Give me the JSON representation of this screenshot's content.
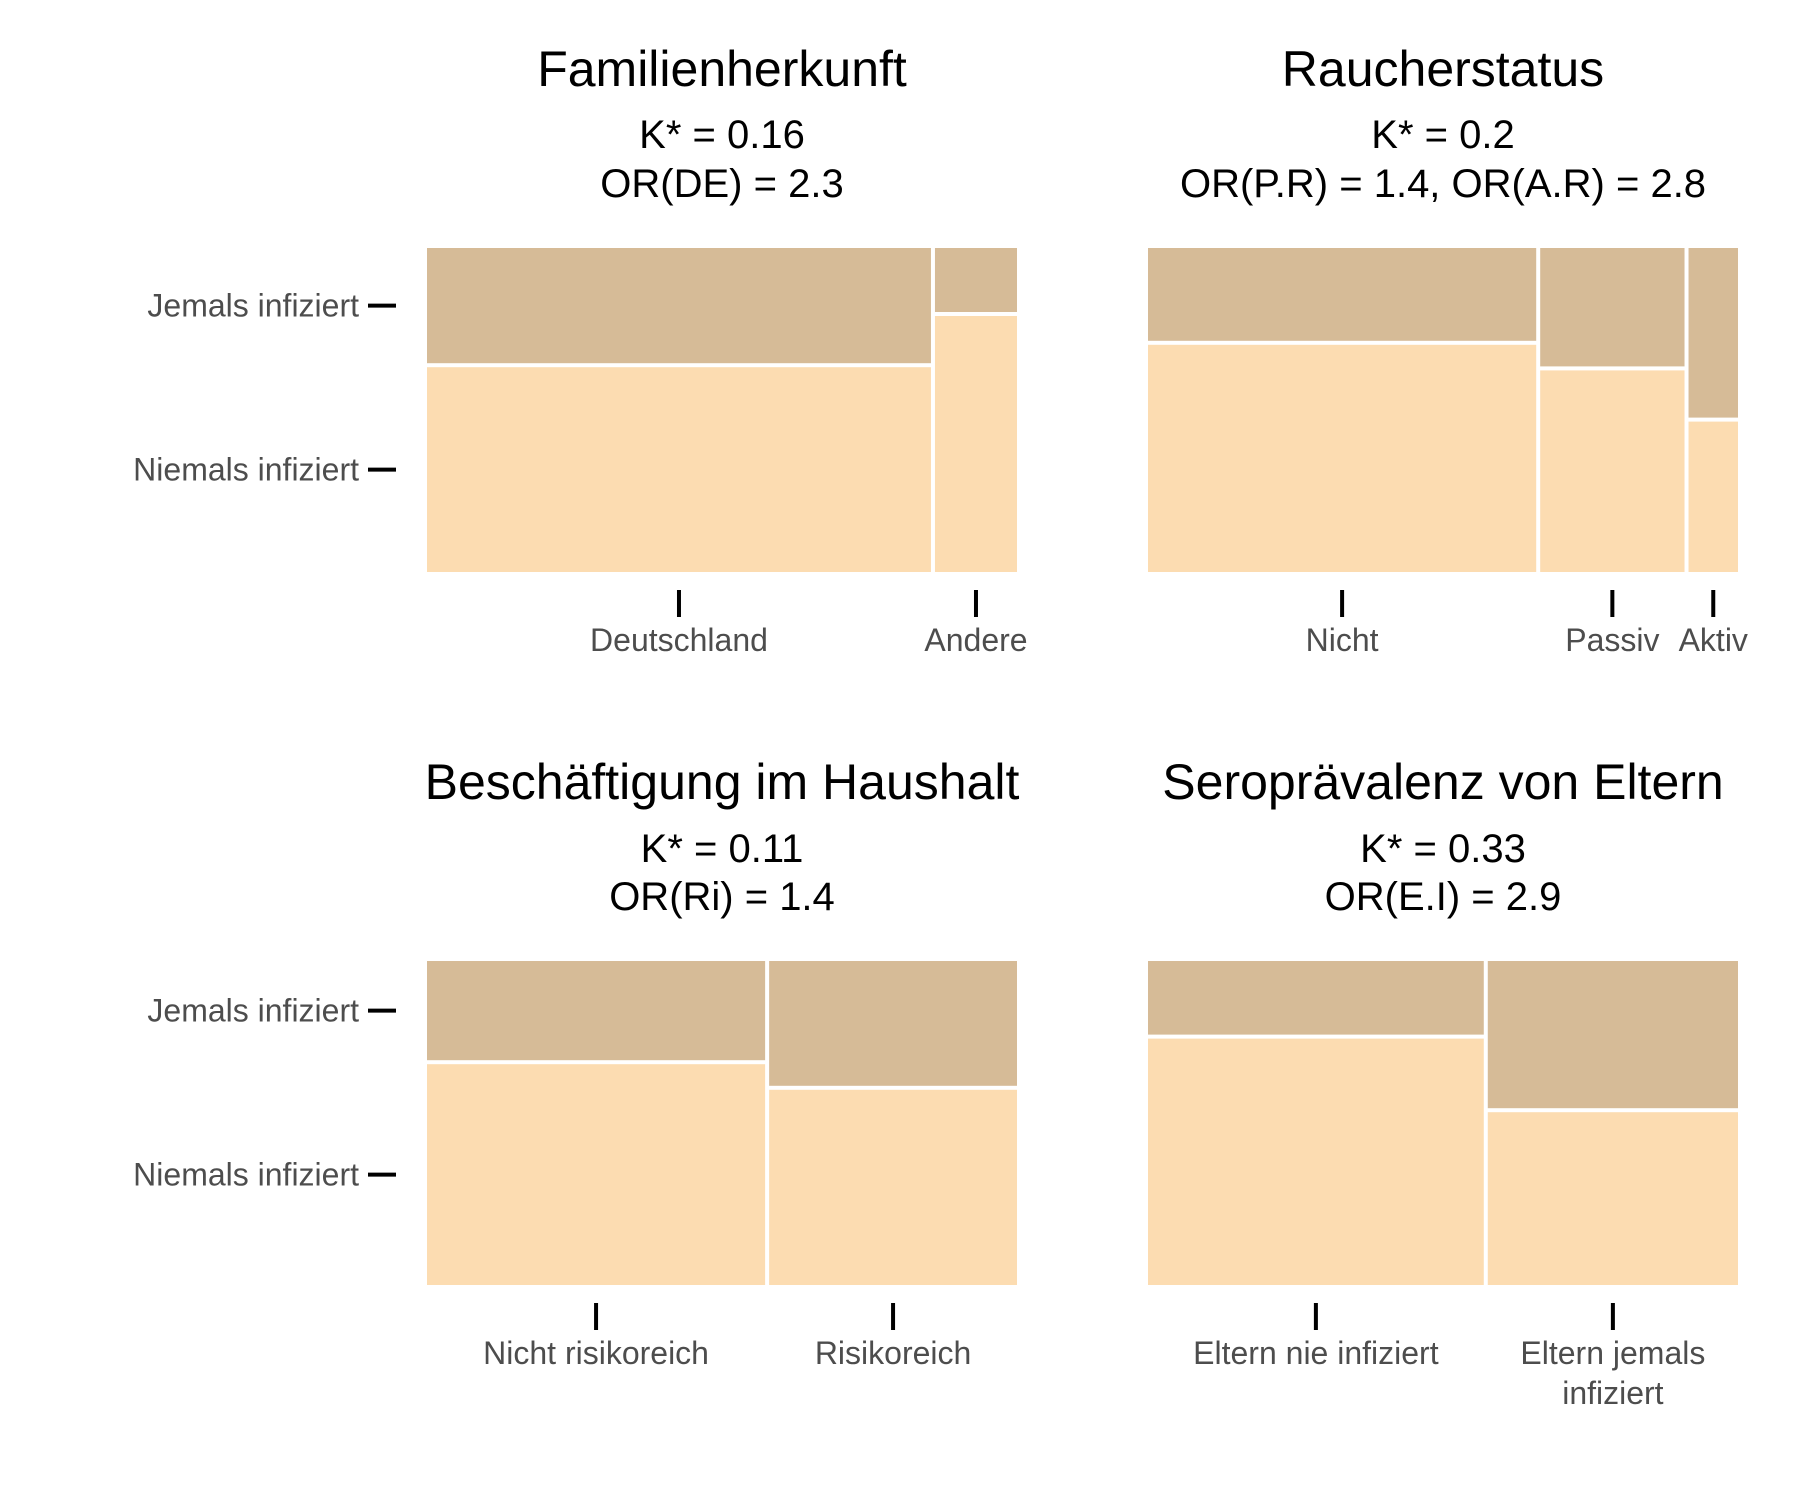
{
  "colors": {
    "ever_infected": "#d6bb97",
    "never_infected": "#fcdcb1",
    "divider": "#ffffff",
    "tick": "#000000",
    "label": "#4d4d4d"
  },
  "chart_data": [
    {
      "type": "mosaic",
      "title": "Familienherkunft",
      "subtitle_lines": [
        "K* = 0.16",
        "OR(DE) = 2.3"
      ],
      "y_categories": [
        "Jemals infiziert",
        "Niemals infiziert"
      ],
      "x_categories": [
        [
          "Deutschland"
        ],
        [
          "Andere"
        ]
      ],
      "column_widths": [
        0.86,
        0.14
      ],
      "ever_infected_share": [
        0.36,
        0.2
      ]
    },
    {
      "type": "mosaic",
      "title": "Raucherstatus",
      "subtitle_lines": [
        "K* = 0.2",
        "OR(P.R) = 1.4, OR(A.R) = 2.8"
      ],
      "y_categories": [
        "Jemals infiziert",
        "Niemals infiziert"
      ],
      "x_categories": [
        [
          "Nicht"
        ],
        [
          "Passiv"
        ],
        [
          "Aktiv"
        ]
      ],
      "column_widths": [
        0.667,
        0.248,
        0.085
      ],
      "ever_infected_share": [
        0.29,
        0.37,
        0.53
      ]
    },
    {
      "type": "mosaic",
      "title": "Beschäftigung im Haushalt",
      "subtitle_lines": [
        "K* = 0.11",
        "OR(Ri) = 1.4"
      ],
      "y_categories": [
        "Jemals infiziert",
        "Niemals infiziert"
      ],
      "x_categories": [
        [
          "Nicht risikoreich"
        ],
        [
          "Risikoreich"
        ]
      ],
      "column_widths": [
        0.577,
        0.423
      ],
      "ever_infected_share": [
        0.31,
        0.39
      ]
    },
    {
      "type": "mosaic",
      "title": "Seroprävalenz von Eltern",
      "subtitle_lines": [
        "K* = 0.33",
        "OR(E.I) = 2.9"
      ],
      "y_categories": [
        "Jemals infiziert",
        "Niemals infiziert"
      ],
      "x_categories": [
        [
          "Eltern nie infiziert"
        ],
        [
          "Eltern jemals",
          "infiziert"
        ]
      ],
      "column_widths": [
        0.573,
        0.427
      ],
      "ever_infected_share": [
        0.23,
        0.46
      ]
    }
  ]
}
